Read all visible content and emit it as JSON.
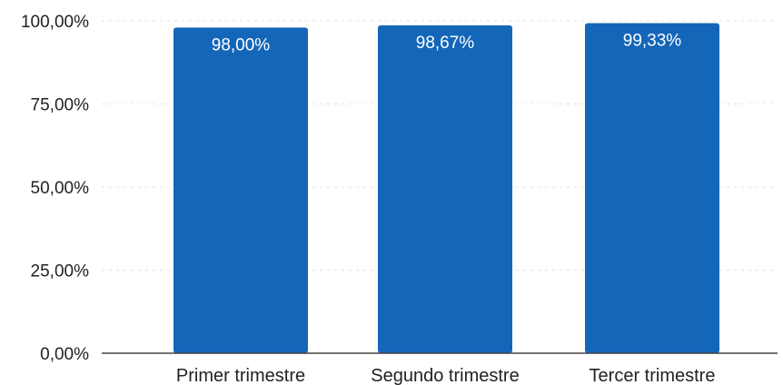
{
  "chart_data": {
    "type": "bar",
    "title": "",
    "xlabel": "",
    "ylabel": "",
    "categories": [
      "Primer trimestre",
      "Segundo trimestre",
      "Tercer trimestre"
    ],
    "values": [
      98.0,
      98.67,
      99.33
    ],
    "data_labels": [
      "98,00%",
      "98,67%",
      "99,33%"
    ],
    "ylim": [
      0,
      100
    ],
    "yticks": [
      0,
      25,
      50,
      75,
      100
    ],
    "ytick_labels": [
      "0,00%",
      "25,00%",
      "50,00%",
      "75,00%",
      "100,00%"
    ],
    "grid": true,
    "legend": "none",
    "bar_color": "#1466b8",
    "data_label_color": "#ffffff"
  }
}
